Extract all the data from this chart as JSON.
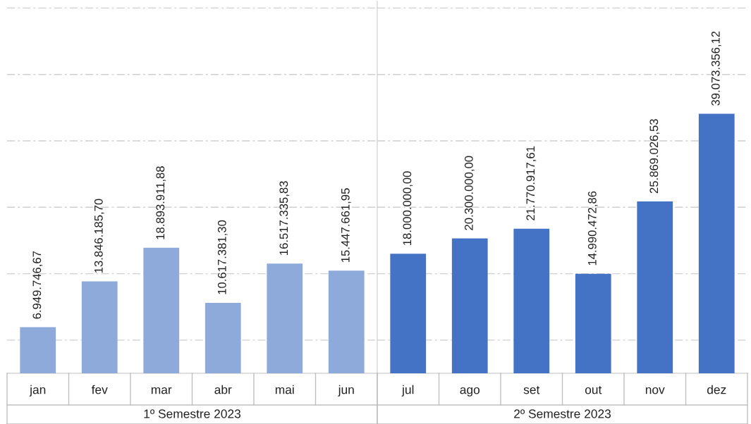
{
  "chart_data": [
    {
      "type": "bar",
      "xlabel": "1º Semestre 2023",
      "categories": [
        "jan",
        "fev",
        "mar",
        "abr",
        "mai",
        "jun"
      ],
      "values": [
        6949746.67,
        13846185.7,
        18893911.88,
        10617381.3,
        16517335.83,
        15447661.95
      ],
      "value_labels": [
        "6.949.746,67",
        "13.846.185,70",
        "18.893.911,88",
        "10.617.381,30",
        "16.517.335,83",
        "15.447.661,95"
      ],
      "color": "#8eaadb",
      "ylim": [
        0,
        56000000
      ],
      "yticks": [
        {
          "value": 5000000,
          "label": null
        },
        {
          "value": 15000000,
          "label": null
        },
        {
          "value": 25000000,
          "label": null
        },
        {
          "value": 35000000,
          "label": null
        },
        {
          "value": 45000000,
          "label": null
        },
        {
          "value": 55000000,
          "label": null
        }
      ],
      "grid": "y",
      "tick_labels": "x"
    },
    {
      "type": "bar",
      "xlabel": "2º Semestre 2023",
      "categories": [
        "jul",
        "ago",
        "set",
        "out",
        "nov",
        "dez"
      ],
      "values": [
        18000000.0,
        20300000.0,
        21770917.61,
        14990472.86,
        25869026.53,
        39073356.12
      ],
      "value_labels": [
        "18.000.000,00",
        "20.300.000,00",
        "21.770.917,61",
        "14.990.472,86",
        "25.869.026,53",
        "39.073.356,12"
      ],
      "color": "#4472c4",
      "ylim": [
        0,
        56000000
      ],
      "yticks": [
        {
          "value": 5000000,
          "label": null
        },
        {
          "value": 15000000,
          "label": null
        },
        {
          "value": 25000000,
          "label": null
        },
        {
          "value": 35000000,
          "label": null
        },
        {
          "value": 45000000,
          "label": null
        },
        {
          "value": 55000000,
          "label": null
        }
      ],
      "grid": "y",
      "tick_labels": "x"
    }
  ]
}
